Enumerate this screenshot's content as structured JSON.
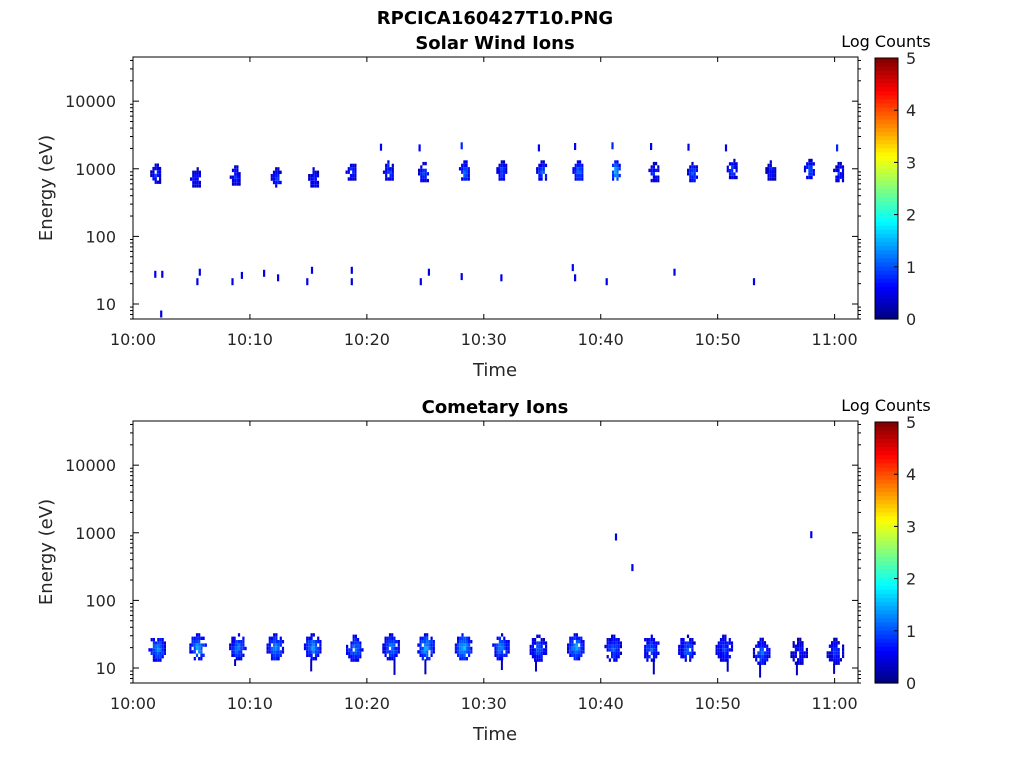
{
  "figure_title": "RPCICA160427T10.PNG",
  "chart_data": [
    {
      "type": "heatmap",
      "title": "Solar Wind Ions",
      "xlabel": "Time",
      "ylabel": "Energy (eV)",
      "x_ticks": [
        "10:00",
        "10:10",
        "10:20",
        "10:30",
        "10:40",
        "10:50",
        "11:00"
      ],
      "x_range": [
        "10:00",
        "11:02"
      ],
      "y_scale": "log",
      "y_ticks": [
        "10",
        "100",
        "1000",
        "10000"
      ],
      "y_range": [
        6,
        45000
      ],
      "colorbar": {
        "label": "Log Counts",
        "range": [
          0,
          5
        ],
        "ticks": [
          "0",
          "1",
          "2",
          "3",
          "4",
          "5"
        ],
        "colormap": "jet"
      },
      "blobs": [
        {
          "t": 1.9,
          "e": 850,
          "v": 0.9
        },
        {
          "t": 5.3,
          "e": 750,
          "v": 0.8
        },
        {
          "t": 8.7,
          "e": 800,
          "v": 0.9
        },
        {
          "t": 12.2,
          "e": 750,
          "v": 0.9
        },
        {
          "t": 15.4,
          "e": 750,
          "v": 0.8
        },
        {
          "t": 18.6,
          "e": 950,
          "v": 0.9
        },
        {
          "t": 21.8,
          "e": 950,
          "v": 1.1
        },
        {
          "t": 24.8,
          "e": 900,
          "v": 1.1
        },
        {
          "t": 28.3,
          "e": 950,
          "v": 1.2
        },
        {
          "t": 31.5,
          "e": 950,
          "v": 1.0
        },
        {
          "t": 34.9,
          "e": 950,
          "v": 1.2
        },
        {
          "t": 38.0,
          "e": 950,
          "v": 1.3
        },
        {
          "t": 41.2,
          "e": 950,
          "v": 1.6
        },
        {
          "t": 44.5,
          "e": 900,
          "v": 0.9
        },
        {
          "t": 47.8,
          "e": 900,
          "v": 1.1
        },
        {
          "t": 51.2,
          "e": 1000,
          "v": 1.0
        },
        {
          "t": 54.5,
          "e": 950,
          "v": 0.8
        },
        {
          "t": 57.8,
          "e": 1000,
          "v": 1.1
        },
        {
          "t": 60.3,
          "e": 900,
          "v": 0.9
        }
      ],
      "specks": [
        {
          "t": 21.2,
          "e": 2050,
          "v": 0.6
        },
        {
          "t": 24.5,
          "e": 2000,
          "v": 0.6
        },
        {
          "t": 28.1,
          "e": 2150,
          "v": 0.8
        },
        {
          "t": 34.7,
          "e": 2000,
          "v": 0.6
        },
        {
          "t": 37.8,
          "e": 2100,
          "v": 0.6
        },
        {
          "t": 41.0,
          "e": 2150,
          "v": 0.8
        },
        {
          "t": 44.3,
          "e": 2100,
          "v": 0.6
        },
        {
          "t": 47.5,
          "e": 2050,
          "v": 0.5
        },
        {
          "t": 50.7,
          "e": 2000,
          "v": 0.5
        },
        {
          "t": 60.2,
          "e": 2000,
          "v": 0.8
        },
        {
          "t": 1.9,
          "e": 27,
          "v": 0.5
        },
        {
          "t": 2.5,
          "e": 27,
          "v": 0.5
        },
        {
          "t": 5.7,
          "e": 29,
          "v": 0.5
        },
        {
          "t": 5.5,
          "e": 21,
          "v": 0.5
        },
        {
          "t": 8.5,
          "e": 21,
          "v": 0.5
        },
        {
          "t": 9.3,
          "e": 26,
          "v": 0.5
        },
        {
          "t": 11.2,
          "e": 28,
          "v": 0.5
        },
        {
          "t": 12.4,
          "e": 24,
          "v": 0.5
        },
        {
          "t": 14.9,
          "e": 21,
          "v": 0.5
        },
        {
          "t": 15.3,
          "e": 31,
          "v": 0.5
        },
        {
          "t": 18.7,
          "e": 31,
          "v": 0.5
        },
        {
          "t": 18.7,
          "e": 21,
          "v": 0.5
        },
        {
          "t": 24.6,
          "e": 21,
          "v": 0.5
        },
        {
          "t": 25.3,
          "e": 29,
          "v": 0.5
        },
        {
          "t": 28.1,
          "e": 25,
          "v": 0.5
        },
        {
          "t": 31.5,
          "e": 24,
          "v": 0.5
        },
        {
          "t": 37.6,
          "e": 34,
          "v": 0.6
        },
        {
          "t": 37.8,
          "e": 24,
          "v": 0.5
        },
        {
          "t": 40.5,
          "e": 21,
          "v": 0.5
        },
        {
          "t": 46.3,
          "e": 29,
          "v": 0.5
        },
        {
          "t": 53.1,
          "e": 21,
          "v": 0.5
        },
        {
          "t": 2.4,
          "e": 7,
          "v": 0.5
        }
      ]
    },
    {
      "type": "heatmap",
      "title": "Cometary Ions",
      "xlabel": "Time",
      "ylabel": "Energy (eV)",
      "x_ticks": [
        "10:00",
        "10:10",
        "10:20",
        "10:30",
        "10:40",
        "10:50",
        "11:00"
      ],
      "x_range": [
        "10:00",
        "11:02"
      ],
      "y_scale": "log",
      "y_ticks": [
        "10",
        "100",
        "1000",
        "10000"
      ],
      "y_range": [
        6,
        45000
      ],
      "colorbar": {
        "label": "Log Counts",
        "range": [
          0,
          5
        ],
        "ticks": [
          "0",
          "1",
          "2",
          "3",
          "4",
          "5"
        ],
        "colormap": "jet"
      },
      "blobs": [
        {
          "t": 2.0,
          "e": 20,
          "v": 1.4
        },
        {
          "t": 5.5,
          "e": 21,
          "v": 1.5
        },
        {
          "t": 8.9,
          "e": 21,
          "v": 1.3
        },
        {
          "t": 12.1,
          "e": 21,
          "v": 1.4
        },
        {
          "t": 15.3,
          "e": 21,
          "v": 1.4
        },
        {
          "t": 18.9,
          "e": 20,
          "v": 1.3
        },
        {
          "t": 22.0,
          "e": 21,
          "v": 1.3
        },
        {
          "t": 25.0,
          "e": 21,
          "v": 1.5
        },
        {
          "t": 28.2,
          "e": 21,
          "v": 1.6
        },
        {
          "t": 31.4,
          "e": 21,
          "v": 1.3
        },
        {
          "t": 34.6,
          "e": 20,
          "v": 1.1
        },
        {
          "t": 37.8,
          "e": 21,
          "v": 1.5
        },
        {
          "t": 41.0,
          "e": 20,
          "v": 1.1
        },
        {
          "t": 44.2,
          "e": 20,
          "v": 1.1
        },
        {
          "t": 47.3,
          "e": 20,
          "v": 1.1
        },
        {
          "t": 50.5,
          "e": 20,
          "v": 1.0
        },
        {
          "t": 53.7,
          "e": 18,
          "v": 1.2
        },
        {
          "t": 56.9,
          "e": 18,
          "v": 0.8
        },
        {
          "t": 60.0,
          "e": 18,
          "v": 0.9
        }
      ],
      "specks": [
        {
          "t": 41.3,
          "e": 850,
          "v": 0.5
        },
        {
          "t": 42.7,
          "e": 300,
          "v": 0.5
        },
        {
          "t": 58.0,
          "e": 920,
          "v": 0.5
        }
      ]
    }
  ]
}
